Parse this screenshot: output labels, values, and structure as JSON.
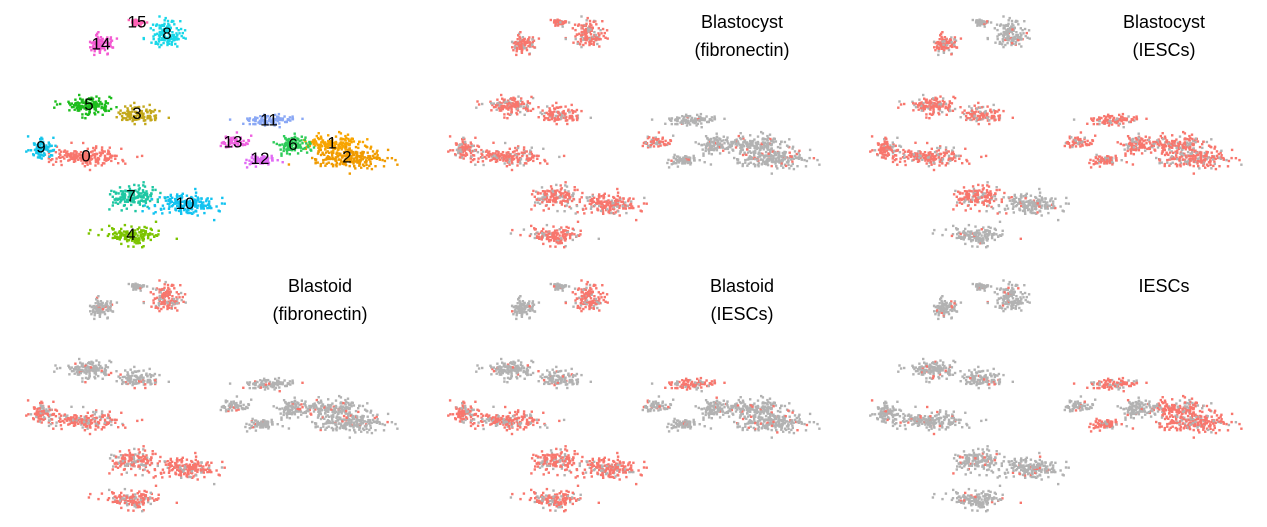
{
  "chart_data": [
    {
      "type": "scatter",
      "title": "",
      "color_by": "cluster",
      "clusters": [
        {
          "label": "0",
          "color": "#f8766d",
          "center": [
            -0.8,
            0.25
          ],
          "spread": [
            0.55,
            0.3
          ]
        },
        {
          "label": "1",
          "color": "#f8a500",
          "center": [
            3.3,
            0.75
          ],
          "spread": [
            0.4,
            0.3
          ]
        },
        {
          "label": "2",
          "color": "#f09b00",
          "center": [
            3.55,
            0.2
          ],
          "spread": [
            0.5,
            0.35
          ]
        },
        {
          "label": "3",
          "color": "#c3a81c",
          "center": [
            0.05,
            1.9
          ],
          "spread": [
            0.3,
            0.28
          ]
        },
        {
          "label": "4",
          "color": "#7cc400",
          "center": [
            -0.05,
            -2.8
          ],
          "spread": [
            0.4,
            0.28
          ]
        },
        {
          "label": "5",
          "color": "#1dbd1d",
          "center": [
            -0.75,
            2.25
          ],
          "spread": [
            0.35,
            0.3
          ]
        },
        {
          "label": "6",
          "color": "#2ecc5a",
          "center": [
            2.65,
            0.7
          ],
          "spread": [
            0.25,
            0.3
          ]
        },
        {
          "label": "7",
          "color": "#1fc7a3",
          "center": [
            -0.05,
            -1.3
          ],
          "spread": [
            0.35,
            0.35
          ]
        },
        {
          "label": "8",
          "color": "#1ad7e8",
          "center": [
            0.55,
            5.0
          ],
          "spread": [
            0.25,
            0.45
          ]
        },
        {
          "label": "9",
          "color": "#16c6eb",
          "center": [
            -1.55,
            0.6
          ],
          "spread": [
            0.2,
            0.3
          ]
        },
        {
          "label": "10",
          "color": "#12c3f0",
          "center": [
            0.85,
            -1.6
          ],
          "spread": [
            0.45,
            0.35
          ]
        },
        {
          "label": "11",
          "color": "#8aa8f5",
          "center": [
            2.25,
            1.65
          ],
          "spread": [
            0.4,
            0.18
          ]
        },
        {
          "label": "12",
          "color": "#e16bf5",
          "center": [
            2.1,
            0.15
          ],
          "spread": [
            0.25,
            0.18
          ]
        },
        {
          "label": "13",
          "color": "#ef61e0",
          "center": [
            1.65,
            0.8
          ],
          "spread": [
            0.2,
            0.18
          ]
        },
        {
          "label": "14",
          "color": "#f35bd2",
          "center": [
            -0.55,
            4.6
          ],
          "spread": [
            0.18,
            0.35
          ]
        },
        {
          "label": "15",
          "color": "#ff63b6",
          "center": [
            0.05,
            5.45
          ],
          "spread": [
            0.12,
            0.1
          ]
        }
      ]
    },
    {
      "type": "scatter",
      "title": "Blastocyst (fibronectin)",
      "title_lines": [
        "Blastocyst",
        "(fibronectin)"
      ],
      "highlight_color": "#f8766d",
      "background_color": "#b2b2b2",
      "highlighted_clusters": [
        "0",
        "3",
        "4",
        "5",
        "7",
        "8",
        "9",
        "10",
        "13",
        "14",
        "15"
      ]
    },
    {
      "type": "scatter",
      "title": "Blastocyst (IESCs)",
      "title_lines": [
        "Blastocyst",
        "(IESCs)"
      ],
      "highlight_color": "#f8766d",
      "background_color": "#b2b2b2",
      "highlighted_clusters": [
        "0",
        "1",
        "2",
        "3",
        "5",
        "6",
        "7",
        "9",
        "11",
        "12",
        "13",
        "14"
      ]
    },
    {
      "type": "scatter",
      "title": "Blastoid (fibronectin)",
      "title_lines": [
        "Blastoid",
        "(fibronectin)"
      ],
      "highlight_color": "#f8766d",
      "background_color": "#b2b2b2",
      "highlighted_clusters": [
        "0",
        "4",
        "7",
        "8",
        "9",
        "10"
      ]
    },
    {
      "type": "scatter",
      "title": "Blastoid (IESCs)",
      "title_lines": [
        "Blastoid",
        "(IESCs)"
      ],
      "highlight_color": "#f8766d",
      "background_color": "#b2b2b2",
      "highlighted_clusters": [
        "0",
        "4",
        "7",
        "8",
        "9",
        "10",
        "11"
      ]
    },
    {
      "type": "scatter",
      "title": "IESCs",
      "title_lines": [
        "IESCs"
      ],
      "highlight_color": "#f8766d",
      "background_color": "#b2b2b2",
      "highlighted_clusters": [
        "1",
        "2",
        "11",
        "12"
      ]
    }
  ]
}
